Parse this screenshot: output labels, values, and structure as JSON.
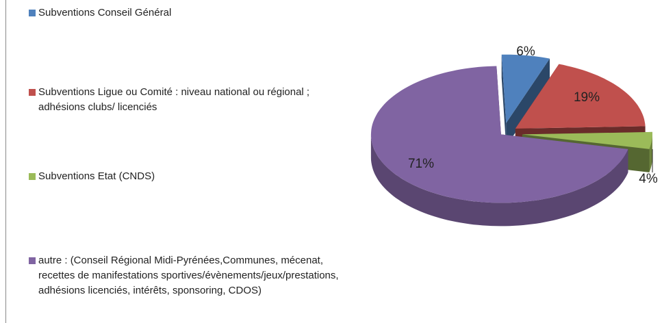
{
  "chart_data": {
    "type": "pie",
    "categories": [
      "Subventions Conseil Général",
      "Subventions Ligue  ou Comité : niveau national ou régional ; adhésions clubs/ licenciés",
      "Subventions Etat (CNDS)",
      "autre : (Conseil Régional Midi-Pyrénées,Communes, mécenat, recettes de manifestations sportives/évènements/jeux/prestations, adhésions licenciés, intérêts, sponsoring, CDOS)"
    ],
    "values": [
      6,
      19,
      4,
      71
    ],
    "value_labels": [
      "6%",
      "19%",
      "4%",
      "71%"
    ],
    "colors": [
      "#4f81bd",
      "#c0504d",
      "#9bbb59",
      "#8064a2"
    ],
    "legend": "left"
  }
}
